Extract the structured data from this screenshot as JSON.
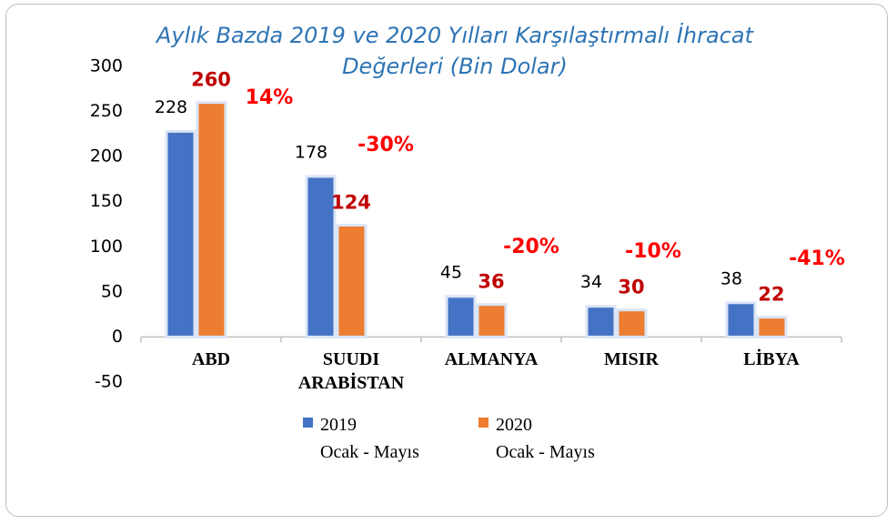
{
  "chart_data": {
    "type": "bar",
    "title": "Aylık Bazda 2019 ve 2020 Yılları Karşılaştırmalı İhracat Değerleri (Bin Dolar)",
    "categories": [
      "ABD",
      "SUUDI\nARABİSTAN",
      "ALMANYA",
      "MISIR",
      "LİBYA"
    ],
    "series": [
      {
        "name": "2019\nOcak - Mayıs",
        "color": "#4472c4",
        "values": [
          228,
          178,
          45,
          34,
          38
        ]
      },
      {
        "name": "2020\nOcak - Mayıs",
        "color": "#ed7d31",
        "values": [
          260,
          124,
          36,
          30,
          22
        ]
      }
    ],
    "annotations": [
      "14%",
      "-30%",
      "-20%",
      "-10%",
      "-41%"
    ],
    "ylim": [
      -50,
      300
    ],
    "yticks": [
      -50,
      0,
      50,
      100,
      150,
      200,
      250,
      300
    ],
    "legend": "bottom"
  }
}
